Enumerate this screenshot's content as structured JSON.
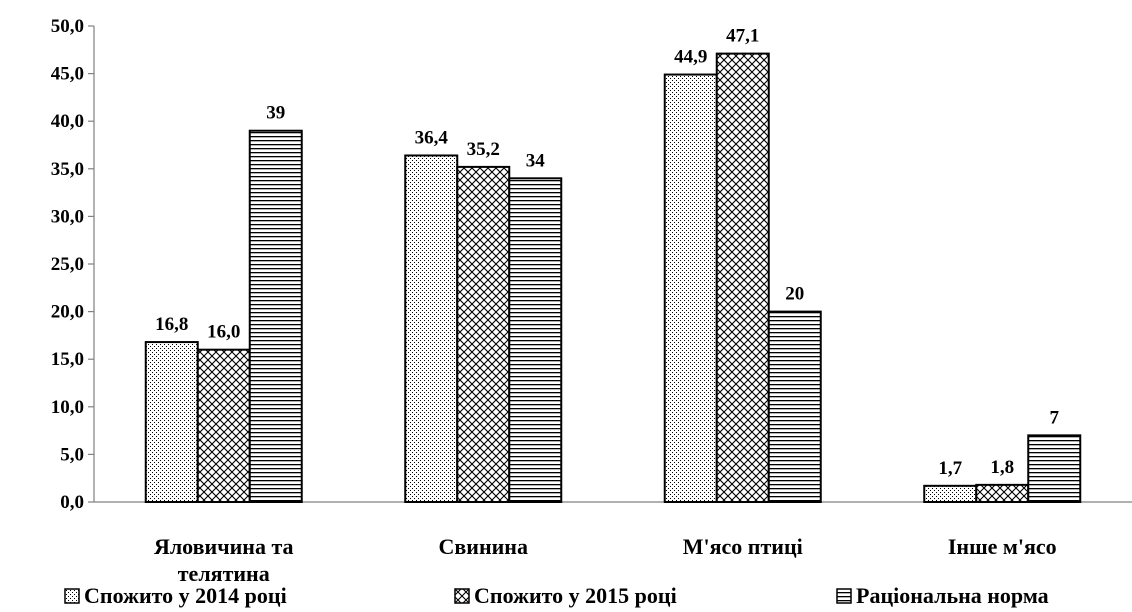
{
  "chart_data": {
    "type": "bar",
    "categories": [
      "Яловичина та\nтелятина",
      "Свинина",
      "М'ясо птиці",
      "Інше м'ясо"
    ],
    "series": [
      {
        "name": "Спожито у 2014 році",
        "values": [
          16.8,
          36.4,
          44.9,
          1.7
        ],
        "labels": [
          "16,8",
          "36,4",
          "44,9",
          "1,7"
        ],
        "pattern": "dots"
      },
      {
        "name": "Спожито у 2015 році",
        "values": [
          16.0,
          35.2,
          47.1,
          1.8
        ],
        "labels": [
          "16,0",
          "35,2",
          "47,1",
          "1,8"
        ],
        "pattern": "cross-hatch"
      },
      {
        "name": "Раціональна норма",
        "values": [
          39,
          34,
          20,
          7
        ],
        "labels": [
          "39",
          "34",
          "20",
          "7"
        ],
        "pattern": "horizontal-lines"
      }
    ],
    "y_ticks": [
      "0,0",
      "5,0",
      "10,0",
      "15,0",
      "20,0",
      "25,0",
      "30,0",
      "35,0",
      "40,0",
      "45,0",
      "50,0"
    ],
    "ylim": [
      0,
      50
    ],
    "title": "",
    "xlabel": "",
    "ylabel": "",
    "grid": false,
    "legend_position": "bottom",
    "colors": {
      "bar_fill": "#ffffff",
      "bar_stroke": "#000000",
      "axis": "#808080"
    }
  }
}
